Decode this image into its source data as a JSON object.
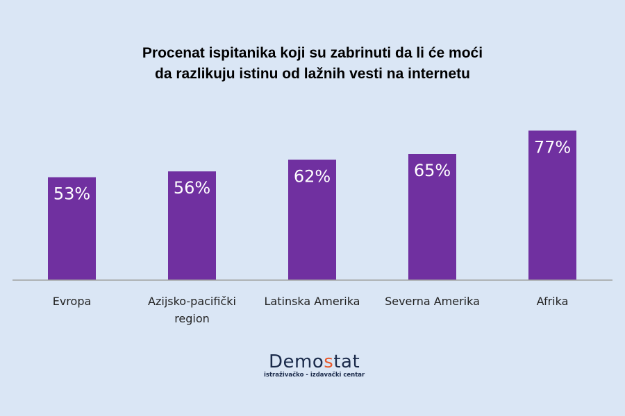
{
  "chart_data": {
    "type": "bar",
    "title_lines": [
      "Procenat ispitanika koji su zabrinuti da li će moći",
      "da razlikuju istinu od lažnih vesti na internetu"
    ],
    "categories": [
      [
        "Evropa"
      ],
      [
        "Azijsko-pacifički",
        "region"
      ],
      [
        "Latinska Amerika"
      ],
      [
        "Severna Amerika"
      ],
      [
        "Afrika"
      ]
    ],
    "values": [
      53,
      56,
      62,
      65,
      77
    ],
    "data_labels": [
      "53%",
      "56%",
      "62%",
      "65%",
      "77%"
    ],
    "ylim": [
      0,
      100
    ],
    "grid": false,
    "bar_color": "#7030a0",
    "xlabel": "",
    "ylabel": ""
  },
  "logo": {
    "main_prefix": "Demo",
    "main_accent": "s",
    "main_suffix": "tat",
    "sub": "istraživačko - izdavački  centar"
  }
}
